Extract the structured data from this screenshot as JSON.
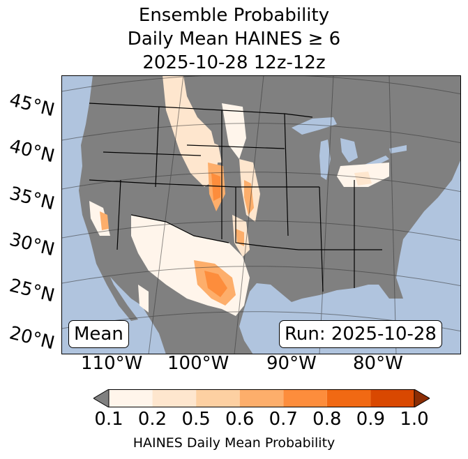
{
  "title": {
    "line1": "Ensemble Probability",
    "line2": "Daily Mean HAINES ≥ 6",
    "line3": "2025-10-28 12z-12z"
  },
  "map": {
    "ocean_color": "#b0c4de",
    "land_color": "#808080",
    "lat_labels": [
      "45°N",
      "40°N",
      "35°N",
      "30°N",
      "25°N",
      "20°N"
    ],
    "lon_labels": [
      "110°W",
      "100°W",
      "90°W",
      "80°W"
    ],
    "stat_box": "Mean",
    "run_box": "Run: 2025-10-28"
  },
  "colorbar": {
    "ticks": [
      "0.1",
      "0.2",
      "0.5",
      "0.6",
      "0.7",
      "0.8",
      "0.9",
      "1.0"
    ],
    "colors": [
      "#808080",
      "#fff5eb",
      "#fee6ce",
      "#fdd0a2",
      "#fdae6b",
      "#fd8d3c",
      "#f16913",
      "#d94801",
      "#8c2d04"
    ],
    "label": "HAINES Daily Mean Probability"
  }
}
